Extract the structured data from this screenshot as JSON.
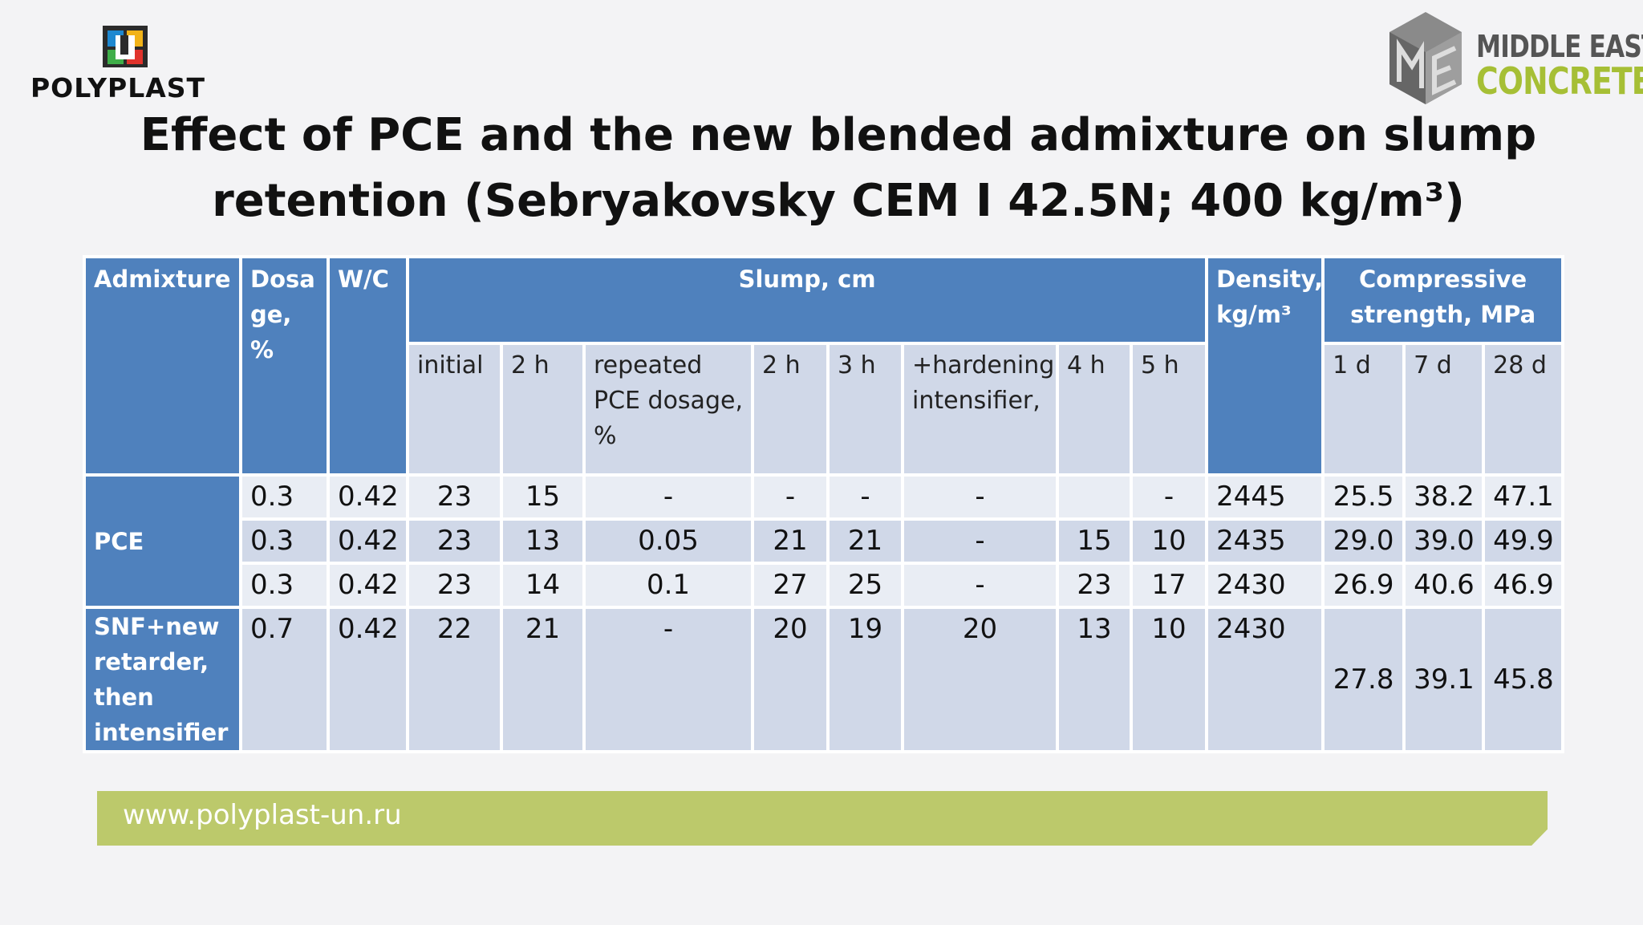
{
  "logos": {
    "left_text": "POLYPLAST",
    "right_line1": "MIDDLE EAST",
    "right_line2": "CONCRETE"
  },
  "title": {
    "line1": "Effect of PCE and the new blended admixture on slump",
    "line2": "retention (Sebryakovsky CEM I 42.5N; 400 kg/m³)"
  },
  "table": {
    "headers": {
      "admixture": "Admixture",
      "dosage": "Dosa ge, %",
      "wc": "W/C",
      "slump": "Slump, cm",
      "density": "Density, kg/m³",
      "strength": "Compressive strength, MPa"
    },
    "subheaders": {
      "initial": "initial",
      "h2": "2 h",
      "repeated": "repeated PCE dosage, %",
      "h2b": "2 h",
      "h3": "3 h",
      "hardening": "+hardening intensifier,",
      "h4": "4 h",
      "h5": "5 h",
      "d1": "1 d",
      "d7": "7 d",
      "d28": "28 d"
    },
    "groups": {
      "pce": "PCE",
      "snf": "SNF+new retarder, then intensifier"
    },
    "rows": [
      {
        "dosage": "0.3",
        "wc": "0.42",
        "initial": "23",
        "h2": "15",
        "repeated": "-",
        "h2b": "-",
        "h3": "-",
        "hardening": "-",
        "h4": "",
        "h5": "-",
        "density": "2445",
        "d1": "25.5",
        "d7": "38.2",
        "d28": "47.1"
      },
      {
        "dosage": "0.3",
        "wc": "0.42",
        "initial": "23",
        "h2": "13",
        "repeated": "0.05",
        "h2b": "21",
        "h3": "21",
        "hardening": "-",
        "h4": "15",
        "h5": "10",
        "density": "2435",
        "d1": "29.0",
        "d7": "39.0",
        "d28": "49.9"
      },
      {
        "dosage": "0.3",
        "wc": "0.42",
        "initial": "23",
        "h2": "14",
        "repeated": "0.1",
        "h2b": "27",
        "h3": "25",
        "hardening": "-",
        "h4": "23",
        "h5": "17",
        "density": "2430",
        "d1": "26.9",
        "d7": "40.6",
        "d28": "46.9"
      },
      {
        "dosage": "0.7",
        "wc": "0.42",
        "initial": "22",
        "h2": "21",
        "repeated": "-",
        "h2b": "20",
        "h3": "19",
        "hardening": "20",
        "h4": "13",
        "h5": "10",
        "density": "2430",
        "d1": "27.8",
        "d7": "39.1",
        "d28": "45.8"
      }
    ]
  },
  "footer": {
    "url": "www.polyplast-un.ru"
  },
  "colors": {
    "header_blue": "#4f81bd",
    "cell_light": "#e9edf4",
    "cell_mid": "#d0d8e8",
    "footer_green": "#bcc96b",
    "brand_green": "#a6bf35"
  }
}
